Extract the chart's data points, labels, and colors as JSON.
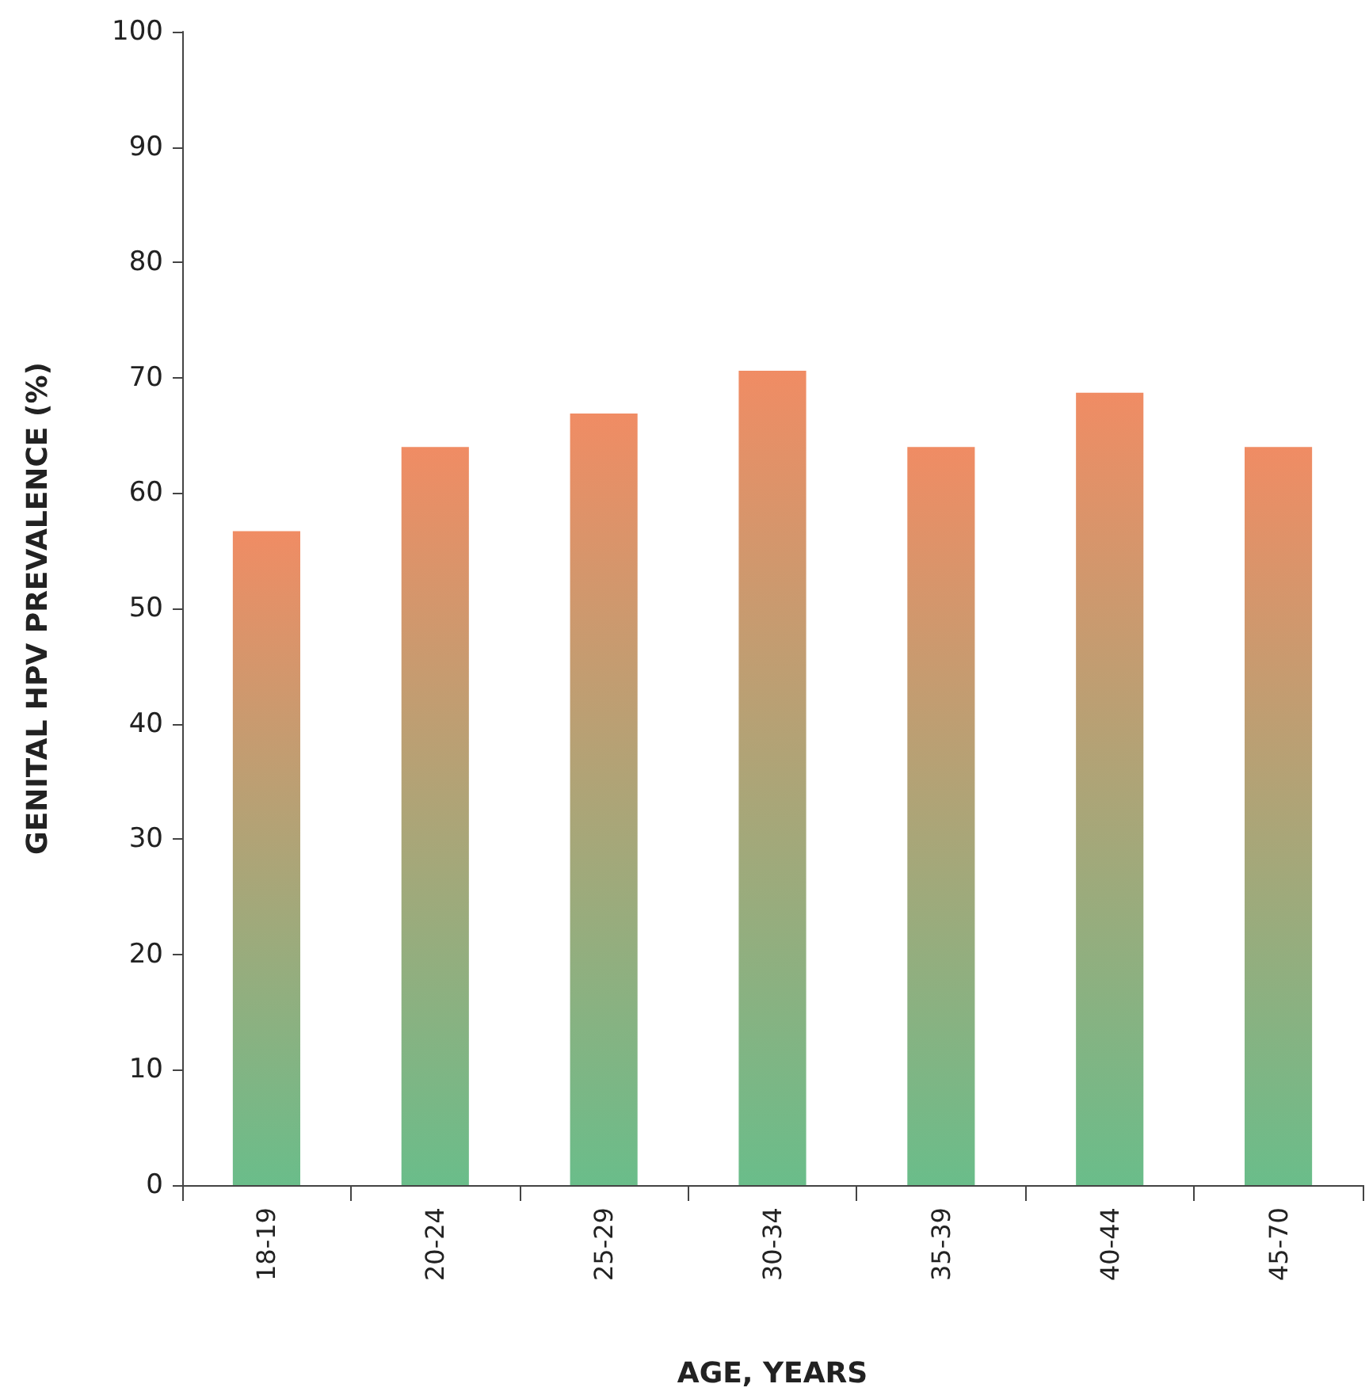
{
  "chart_data": {
    "type": "bar",
    "xlabel": "AGE, YEARS",
    "ylabel": "GENITAL HPV PREVALENCE (%)",
    "categories": [
      "18-19",
      "20-24",
      "25-29",
      "30-34",
      "35-39",
      "40-44",
      "45-70"
    ],
    "values": [
      56.7,
      64.0,
      66.9,
      70.6,
      64.0,
      68.7,
      64.0
    ],
    "color": "#f08c64",
    "ylim": [
      0,
      100
    ],
    "yticks": [
      0,
      10,
      20,
      30,
      40,
      50,
      60,
      70,
      80,
      90,
      100
    ],
    "grid": false
  }
}
